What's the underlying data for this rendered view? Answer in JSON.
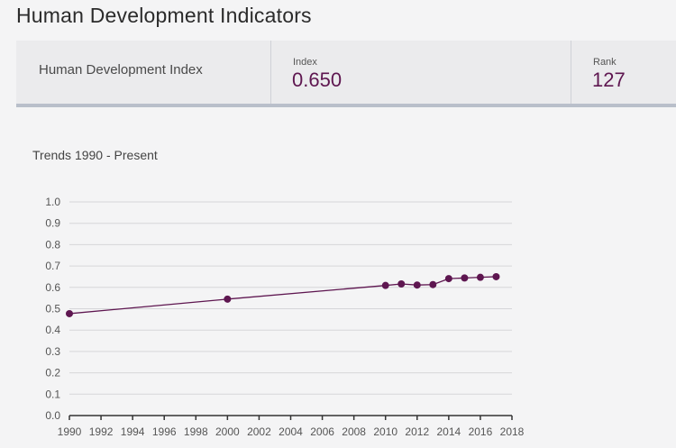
{
  "header": {
    "title": "Human Development Indicators"
  },
  "summary": {
    "indicator_label": "Human Development Index",
    "index_label": "Index",
    "index_value": "0.650",
    "rank_label": "Rank",
    "rank_value": "127"
  },
  "trends": {
    "label": "Trends 1990 - Present"
  },
  "colors": {
    "accent": "#5e1650",
    "header_band": "#ebebed",
    "band_border": "#b9bfca",
    "grid": "#d6d6d9",
    "background": "#f4f4f5"
  },
  "chart_data": {
    "type": "line",
    "title": "",
    "xlabel": "",
    "ylabel": "",
    "xlim": [
      1990,
      2018
    ],
    "ylim": [
      0.0,
      1.0
    ],
    "x_ticks": [
      "1990",
      "1992",
      "1994",
      "1996",
      "1998",
      "2000",
      "2002",
      "2004",
      "2006",
      "2008",
      "2010",
      "2012",
      "2014",
      "2016",
      "2018"
    ],
    "y_ticks": [
      "0.0",
      "0.1",
      "0.2",
      "0.3",
      "0.4",
      "0.5",
      "0.6",
      "0.7",
      "0.8",
      "0.9",
      "1.0"
    ],
    "grid": "horizontal",
    "series": [
      {
        "x": [
          1990,
          2000,
          2010,
          2011,
          2012,
          2013,
          2014,
          2015,
          2016,
          2017
        ],
        "y": [
          0.477,
          0.545,
          0.609,
          0.616,
          0.611,
          0.613,
          0.641,
          0.644,
          0.647,
          0.65
        ]
      }
    ]
  }
}
